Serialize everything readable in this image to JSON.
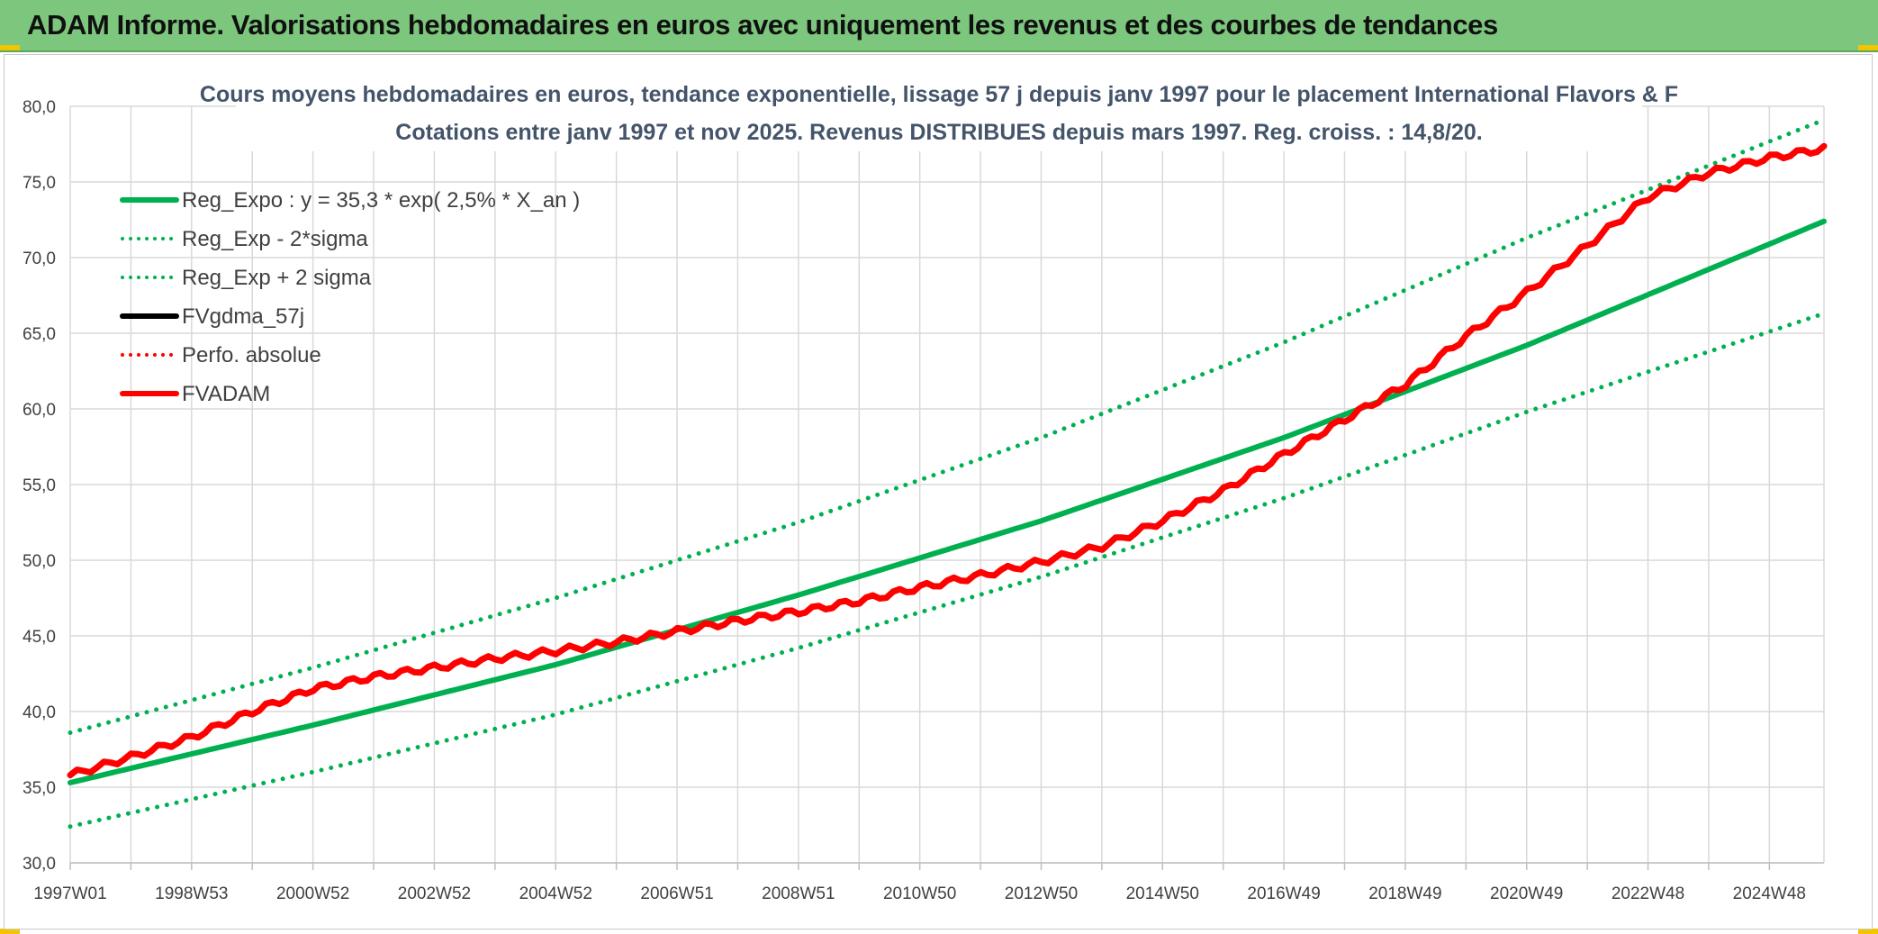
{
  "page": {
    "title": "ADAM Informe. Valorisations hebdomadaires en euros avec uniquement les revenus et des courbes de tendances"
  },
  "colors": {
    "banner": "#7dc67d",
    "green": "#00b050",
    "red": "#ff0000",
    "black": "#000000",
    "grid": "#d9d9d9",
    "title": "#44546a"
  },
  "chart_data": {
    "type": "line",
    "title_line1": "Cours moyens hebdomadaires en euros, tendance exponentielle, lissage 57 j depuis janv 1997 pour le placement International Flavors & F",
    "title_line2": "Cotations entre janv 1997 et nov 2025. Revenus DISTRIBUES depuis mars 1997. Reg. croiss. : 14,8/20.",
    "xlabel": "",
    "ylabel": "",
    "ylim": [
      30,
      80
    ],
    "y_ticks": [
      "30,0",
      "35,0",
      "40,0",
      "45,0",
      "50,0",
      "55,0",
      "60,0",
      "65,0",
      "70,0",
      "75,0",
      "80,0"
    ],
    "x_tick_labels": [
      "1997W01",
      "1998W53",
      "2000W52",
      "2002W52",
      "2004W52",
      "2006W51",
      "2008W51",
      "2010W50",
      "2012W50",
      "2014W50",
      "2016W49",
      "2018W49",
      "2020W49",
      "2022W48",
      "2024W48"
    ],
    "x_range_years": [
      1997.0,
      2025.9
    ],
    "grid": true,
    "legend_position": "top-left",
    "legend": [
      {
        "name": "Reg_Expo : y = 35,3 * exp( 2,5% *  X_an )",
        "color": "#00b050",
        "style": "solid"
      },
      {
        "name": "Reg_Exp - 2*sigma",
        "color": "#00b050",
        "style": "dotted"
      },
      {
        "name": "Reg_Exp + 2 sigma",
        "color": "#00b050",
        "style": "dotted"
      },
      {
        "name": "FVgdma_57j",
        "color": "#000000",
        "style": "solid"
      },
      {
        "name": "Perfo. absolue",
        "color": "#ff0000",
        "style": "dotted"
      },
      {
        "name": "FVADAM",
        "color": "#ff0000",
        "style": "solid"
      }
    ],
    "series": [
      {
        "name": "Reg_Expo : y = 35,3 * exp( 2,5% *  X_an )",
        "x": [
          1997,
          2001,
          2005,
          2009,
          2013,
          2017,
          2021,
          2025.9
        ],
        "values": [
          35.3,
          39.1,
          43.1,
          47.7,
          52.6,
          58.1,
          64.2,
          72.4
        ]
      },
      {
        "name": "Reg_Exp - 2*sigma",
        "x": [
          1997,
          2001,
          2005,
          2009,
          2013,
          2017,
          2021,
          2025.9
        ],
        "values": [
          32.4,
          36.0,
          39.8,
          44.2,
          48.9,
          54.1,
          59.8,
          66.3
        ]
      },
      {
        "name": "Reg_Exp + 2 sigma",
        "x": [
          1997,
          2001,
          2005,
          2009,
          2013,
          2017,
          2021,
          2025.9
        ],
        "values": [
          38.6,
          42.9,
          47.5,
          52.5,
          58.1,
          64.4,
          71.3,
          79.1
        ]
      },
      {
        "name": "FVADAM",
        "x": [
          1997,
          1998,
          1999,
          2000,
          2001,
          2002,
          2003,
          2004,
          2005,
          2006,
          2007,
          2008,
          2009,
          2010,
          2011,
          2012,
          2013,
          2014,
          2015,
          2016,
          2017,
          2018,
          2019,
          2020,
          2021,
          2022,
          2023,
          2024,
          2025,
          2025.9
        ],
        "values": [
          35.8,
          37.0,
          38.3,
          40.0,
          41.5,
          42.3,
          42.9,
          43.5,
          44.0,
          44.6,
          45.3,
          46.0,
          46.6,
          47.3,
          48.2,
          49.0,
          49.9,
          50.9,
          52.6,
          54.6,
          57.0,
          59.3,
          61.6,
          64.8,
          67.7,
          70.8,
          74.0,
          75.6,
          76.6,
          77.2
        ]
      }
    ]
  }
}
